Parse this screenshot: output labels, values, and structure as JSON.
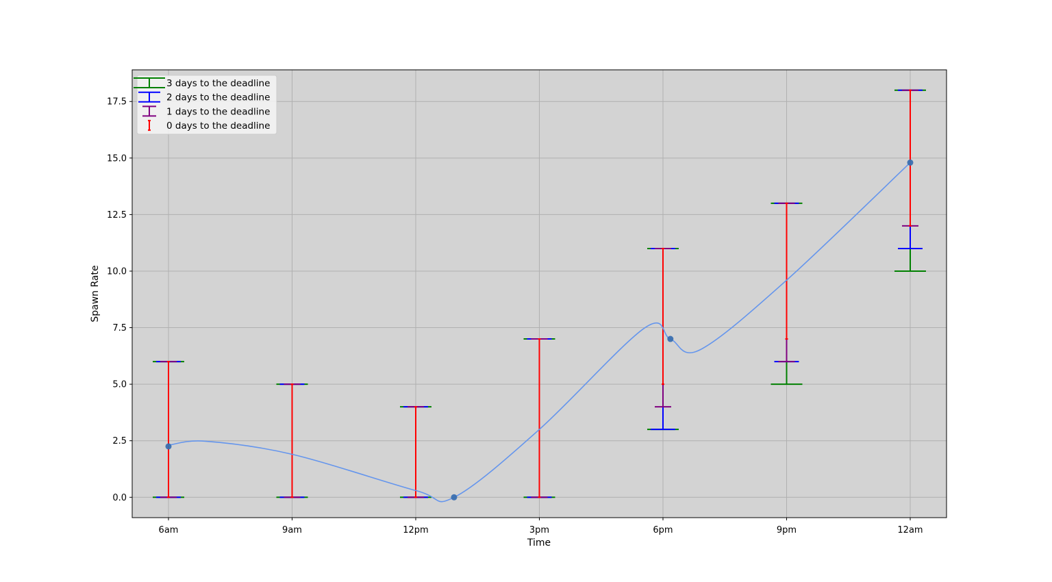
{
  "chart_data": {
    "type": "errorbar",
    "title": "",
    "xlabel": "Time",
    "ylabel": "Spawn Rate",
    "categories": [
      "6am",
      "9am",
      "12pm",
      "3pm",
      "6pm",
      "9pm",
      "12am"
    ],
    "ylim": [
      -0.9,
      18.9
    ],
    "yticks": [
      "0.0",
      "2.5",
      "5.0",
      "7.5",
      "10.0",
      "12.5",
      "15.0",
      "17.5"
    ],
    "ytick_values": [
      0,
      2.5,
      5,
      7.5,
      10,
      12.5,
      15,
      17.5
    ],
    "grid": true,
    "background": "#d3d3d3",
    "legend_position": "upper-left",
    "series": [
      {
        "name": "3 days to the deadline",
        "color": "#008000",
        "lower": [
          0,
          0,
          0,
          0,
          3,
          5,
          10
        ],
        "upper": [
          6,
          5,
          4,
          7,
          11,
          13,
          18
        ]
      },
      {
        "name": "2 days to the deadline",
        "color": "#0000ff",
        "lower": [
          0,
          0,
          0,
          0,
          3,
          6,
          11
        ],
        "upper": [
          6,
          5,
          4,
          7,
          11,
          13,
          18
        ]
      },
      {
        "name": "1 days to the deadline",
        "color": "#800080",
        "lower": [
          0,
          0,
          0,
          0,
          4,
          6,
          12
        ],
        "upper": [
          6,
          5,
          4,
          7,
          11,
          13,
          18
        ]
      },
      {
        "name": "0 days to the deadline",
        "color": "#ff0000",
        "lower": [
          0,
          0,
          0,
          0,
          5,
          7,
          12
        ],
        "upper": [
          6,
          5,
          4,
          7,
          11,
          13,
          18
        ]
      }
    ],
    "trend_points": [
      {
        "x": 0,
        "y": 2.25
      },
      {
        "x": 2.31,
        "y": 0.0
      },
      {
        "x": 4.06,
        "y": 7.0
      },
      {
        "x": 6.0,
        "y": 14.8
      }
    ],
    "trend_curve": [
      [
        0,
        2.3
      ],
      [
        0.3,
        2.48
      ],
      [
        1,
        1.9
      ],
      [
        2,
        0.3
      ],
      [
        2.31,
        0.0
      ],
      [
        3,
        3.0
      ],
      [
        3.85,
        7.48
      ],
      [
        4.06,
        7.0
      ],
      [
        4.3,
        6.52
      ],
      [
        5,
        9.6
      ],
      [
        6,
        14.8
      ]
    ],
    "trend_color": "#6495ed",
    "marker_color": "#3a6fb0"
  }
}
